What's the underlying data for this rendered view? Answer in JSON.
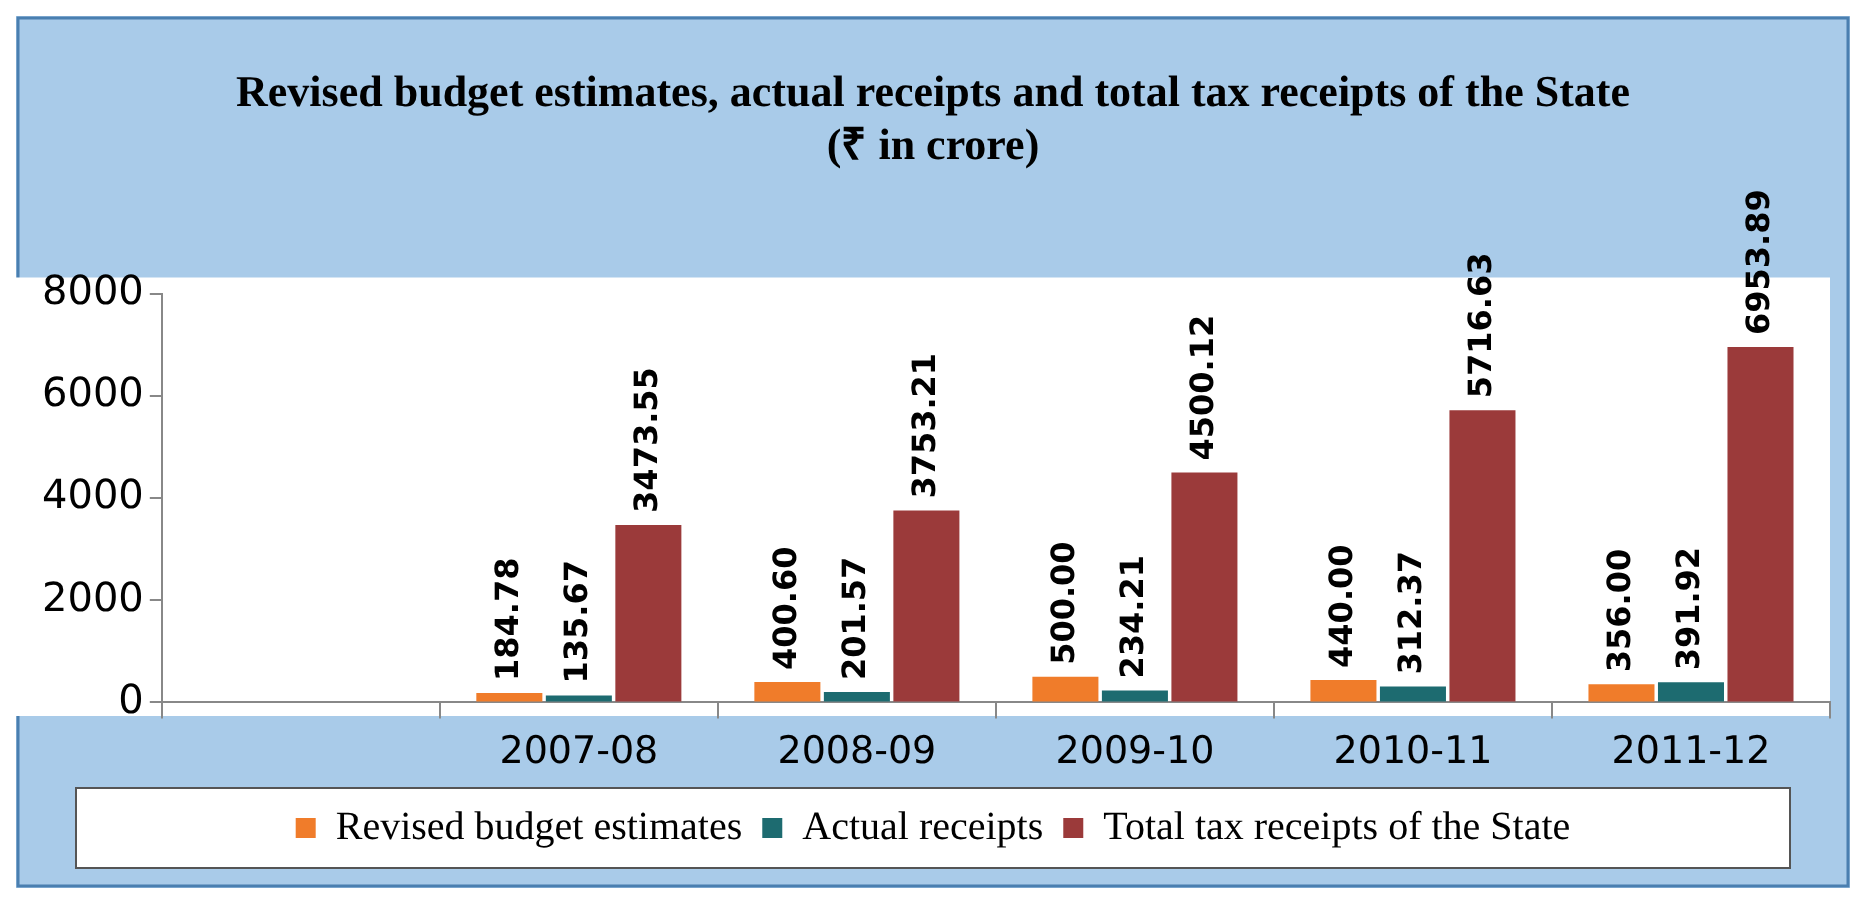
{
  "chart_data": {
    "type": "bar",
    "title": "Revised budget estimates, actual receipts and total tax receipts of the State",
    "subtitle": "(₹ in crore)",
    "categories": [
      null,
      "2007-08",
      "2008-09",
      "2009-10",
      "2010-11",
      "2011-12"
    ],
    "series": [
      {
        "name": "Revised budget estimates",
        "color": "#f07c2a",
        "values": [
          null,
          184.78,
          400.6,
          500.0,
          440.0,
          356.0
        ],
        "value_labels": [
          null,
          "184.78",
          "400.60",
          "500.00",
          "440.00",
          "356.00"
        ]
      },
      {
        "name": "Actual receipts",
        "color": "#1d6b70",
        "values": [
          null,
          135.67,
          201.57,
          234.21,
          312.37,
          391.92
        ],
        "value_labels": [
          null,
          "135.67",
          "201.57",
          "234.21",
          "312.37",
          "391.92"
        ]
      },
      {
        "name": "Total tax receipts of the State",
        "color": "#9b3a3a",
        "values": [
          null,
          3473.55,
          3753.21,
          4500.12,
          5716.63,
          6953.89
        ],
        "value_labels": [
          null,
          "3473.55",
          "3753.21",
          "4500.12",
          "5716.63",
          "6953.89"
        ]
      }
    ],
    "ylim": [
      0,
      8000
    ],
    "yticks": [
      0,
      2000,
      4000,
      6000,
      8000
    ],
    "grid": false,
    "legend": "bottom"
  }
}
